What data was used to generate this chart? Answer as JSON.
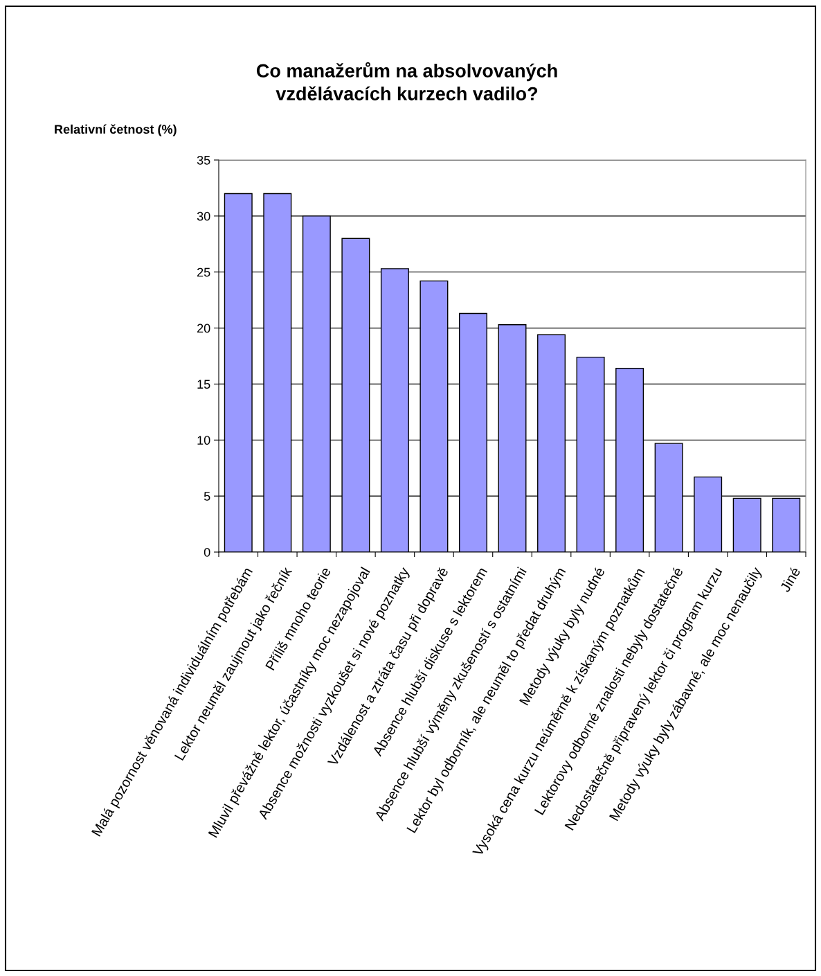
{
  "chart_data": {
    "type": "bar",
    "title": "Co manažerům na absolvovaných\nvzdělávacích kurzech vadilo?",
    "ylabel": "Relativní četnost (%)",
    "categories": [
      "Malá pozornost věnovaná individuálním potřebám",
      "Lektor neuměl zaujmout jako řečník",
      "Příliš mnoho teorie",
      "Mluvil převážně lektor, účastníky moc nezapojoval",
      "Absence možnosti vyzkoušet si nové poznatky",
      "Vzdálenost a ztráta času při dopravě",
      "Absence hlubší diskuse s lektorem",
      "Absence hlubší výměny zkušeností s ostatními",
      "Lektor byl odborník, ale neuměl to předat druhým",
      "Metody výuky byly nudné",
      "Vysoká cena kurzu neúměrně k získaným poznatkům",
      "Lektorovy odborné znalosti nebyly dostatečné",
      "Nedostatečně připravený lektor či program kurzu",
      "Metody výuky byly zábavné, ale moc nenaučily",
      "Jiné"
    ],
    "values": [
      32.0,
      32.0,
      30.0,
      28.0,
      25.3,
      24.2,
      21.3,
      20.3,
      19.4,
      17.4,
      16.4,
      9.7,
      6.7,
      4.8,
      4.8
    ],
    "color": "#9999ff",
    "ylim": [
      0,
      35
    ],
    "yticks": [
      0,
      5,
      10,
      15,
      20,
      25,
      30,
      35
    ],
    "grid": "y",
    "legend": false
  }
}
